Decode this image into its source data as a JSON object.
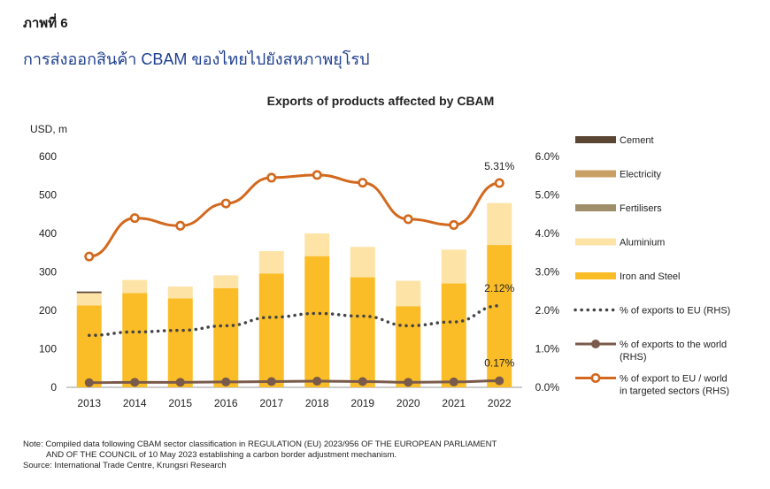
{
  "header": {
    "figure_number": "ภาพที่ 6",
    "figure_title": "การส่งออกสินค้า CBAM ของไทยไปยังสหภาพยุโรป"
  },
  "chart_data": {
    "type": "bar",
    "title": "Exports of products affected by CBAM",
    "ylabel": "USD, m",
    "categories": [
      "2013",
      "2014",
      "2015",
      "2016",
      "2017",
      "2018",
      "2019",
      "2020",
      "2021",
      "2022"
    ],
    "ylim": [
      0,
      600
    ],
    "y_ticks": [
      "0",
      "100",
      "200",
      "300",
      "400",
      "500",
      "600"
    ],
    "y2lim": [
      0,
      6
    ],
    "y2_ticks": [
      "0.0%",
      "1.0%",
      "2.0%",
      "3.0%",
      "4.0%",
      "5.0%",
      "6.0%"
    ],
    "stacked_series": [
      {
        "name": "Iron and Steel",
        "color": "#FBBD27",
        "values": [
          213,
          245,
          231,
          258,
          296,
          341,
          286,
          211,
          270,
          370
        ]
      },
      {
        "name": "Aluminium",
        "color": "#FDE3A6",
        "values": [
          32,
          34,
          31,
          33,
          58,
          59,
          79,
          66,
          88,
          109
        ]
      },
      {
        "name": "Fertilisers",
        "color": "#A08E6A",
        "values": [
          0,
          0,
          0,
          0,
          0,
          0,
          0,
          0,
          0,
          0
        ]
      },
      {
        "name": "Electricity",
        "color": "#C9A064",
        "values": [
          0,
          0,
          0,
          0,
          0,
          0,
          0,
          0,
          0,
          0
        ]
      },
      {
        "name": "Cement",
        "color": "#5A4632",
        "values": [
          4,
          0,
          0,
          0,
          0,
          0,
          0,
          0,
          0,
          0
        ]
      }
    ],
    "line_series": [
      {
        "name": "% of exports to EU (RHS)",
        "style": "dotted",
        "color": "#444444",
        "values": [
          1.35,
          1.44,
          1.48,
          1.6,
          1.82,
          1.92,
          1.85,
          1.6,
          1.7,
          2.12
        ]
      },
      {
        "name": "% of exports to the world (RHS)",
        "style": "marker",
        "color": "#7A5A4A",
        "values": [
          0.12,
          0.13,
          0.13,
          0.14,
          0.15,
          0.16,
          0.15,
          0.13,
          0.14,
          0.17
        ]
      },
      {
        "name": "% of export to EU / world in targeted sectors  (RHS)",
        "style": "marker",
        "color": "#D2691E",
        "values": [
          3.4,
          4.4,
          4.2,
          4.78,
          5.45,
          5.52,
          5.32,
          4.37,
          4.22,
          5.31
        ]
      }
    ],
    "annotations": [
      "5.31%",
      "2.12%",
      "0.17%"
    ],
    "legend": [
      {
        "label": "Cement",
        "kind": "bar",
        "color": "#5A4632"
      },
      {
        "label": "Electricity",
        "kind": "bar",
        "color": "#C9A064"
      },
      {
        "label": "Fertilisers",
        "kind": "bar",
        "color": "#A08E6A"
      },
      {
        "label": "Aluminium",
        "kind": "bar",
        "color": "#FDE3A6"
      },
      {
        "label": "Iron and Steel",
        "kind": "bar",
        "color": "#FBBD27"
      },
      {
        "label": "% of exports to EU (RHS)",
        "kind": "dotted",
        "color": "#444444"
      },
      {
        "label": "% of exports to the world",
        "label2": "(RHS)",
        "kind": "marker",
        "color": "#7A5A4A"
      },
      {
        "label": "% of export to EU / world",
        "label2": "in targeted sectors  (RHS)",
        "kind": "marker",
        "color": "#D2691E"
      }
    ],
    "legend_position": "right"
  },
  "notes": {
    "note_line1": "Note: Compiled data following CBAM sector classification in REGULATION (EU) 2023/956 OF THE EUROPEAN PARLIAMENT",
    "note_line2": "AND OF THE COUNCIL of 10 May 2023 establishing a carbon border adjustment mechanism.",
    "source": "Source: International Trade Centre, Krungsri Research"
  }
}
